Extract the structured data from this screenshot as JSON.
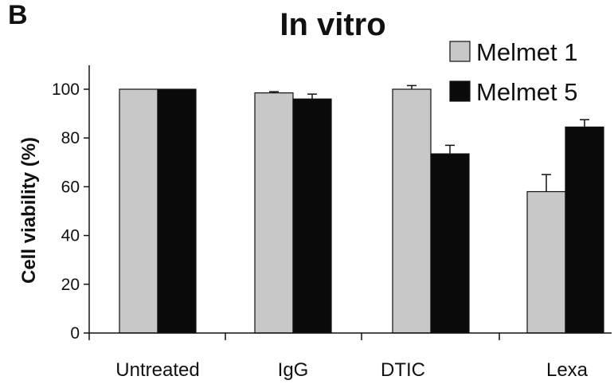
{
  "panel_label": "B",
  "chart_data": {
    "type": "bar",
    "title": "In vitro",
    "xlabel": "",
    "ylabel": "Cell viability (%)",
    "ylim": [
      0,
      110
    ],
    "yticks": [
      0,
      20,
      40,
      60,
      80,
      100
    ],
    "categories": [
      "Untreated",
      "IgG",
      "DTIC",
      "Lexa"
    ],
    "series": [
      {
        "name": "Melmet 1",
        "color": "#c8c8c8",
        "values": [
          100,
          98.5,
          100,
          58
        ],
        "errors": [
          0,
          0.5,
          1.5,
          7
        ]
      },
      {
        "name": "Melmet 5",
        "color": "#0a0a0a",
        "values": [
          100,
          96,
          73.5,
          84.5
        ],
        "errors": [
          0,
          2,
          3.5,
          3
        ]
      }
    ],
    "legend_position": "top-right",
    "grid": false
  }
}
